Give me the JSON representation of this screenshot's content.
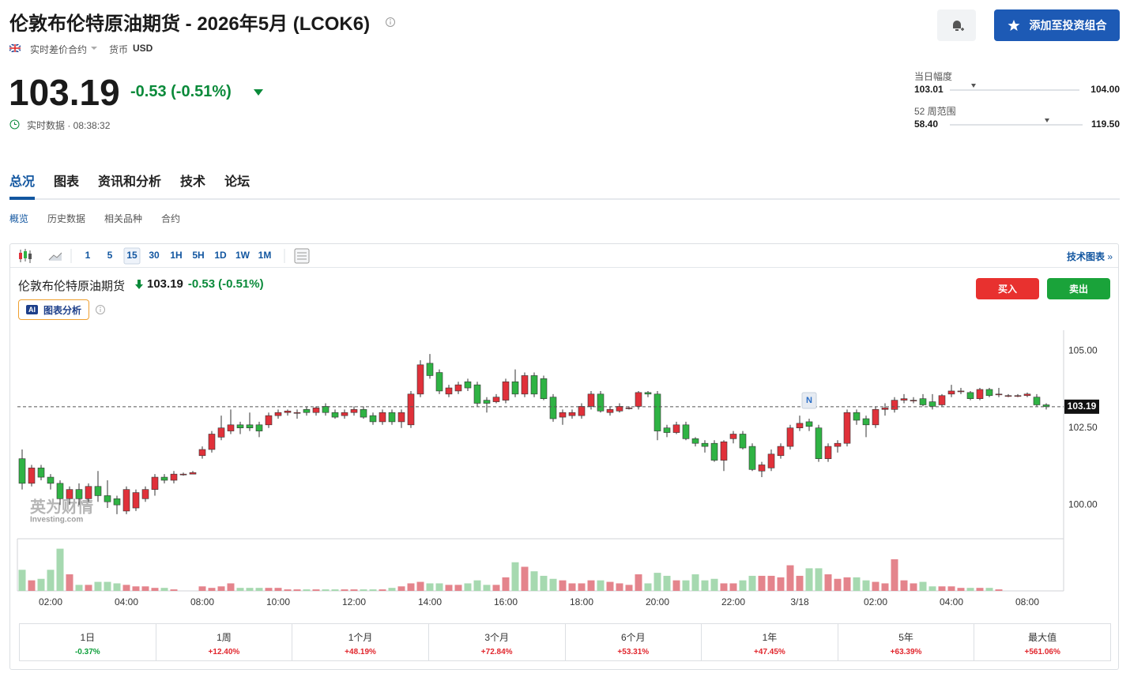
{
  "header": {
    "title": "伦敦布伦特原油期货 - 2026年5月 (LCOK6)",
    "contract_type": "实时差价合约",
    "currency_label": "货币",
    "currency": "USD",
    "add_button": "添加至投资组合"
  },
  "quote": {
    "price": "103.19",
    "change": "-0.53 (-0.51%)",
    "status": "实时数据 · 08:38:32"
  },
  "ranges": [
    {
      "label": "当日幅度",
      "low": "103.01",
      "high": "104.00"
    },
    {
      "label": "52 周范围",
      "low": "58.40",
      "high": "119.50"
    }
  ],
  "tabs": [
    "总况",
    "图表",
    "资讯和分析",
    "技术",
    "论坛"
  ],
  "subtabs": [
    "概览",
    "历史数据",
    "相关品种",
    "合约"
  ],
  "toolbar": {
    "intervals": [
      "1",
      "5",
      "15",
      "30",
      "1H",
      "5H",
      "1D",
      "1W",
      "1M"
    ],
    "tech_chart_link": "技术图表"
  },
  "chart_header": {
    "name": "伦敦布伦特原油期货",
    "price": "103.19",
    "change": "-0.53",
    "change_pct": "(-0.51%)",
    "ai_badge": "AI",
    "ai_button": "图表分析",
    "buy": "买入",
    "sell": "卖出"
  },
  "watermark": {
    "brand": "英为财情",
    "site": "Investing.com"
  },
  "chart_data": {
    "type": "candlestick",
    "categories": [
      null,
      null,
      null,
      "02:00",
      null,
      null,
      null,
      null,
      null,
      null,
      null,
      "04:00",
      null,
      null,
      null,
      null,
      null,
      null,
      null,
      "08:00",
      null,
      null,
      null,
      null,
      null,
      null,
      null,
      "10:00",
      null,
      null,
      null,
      null,
      null,
      null,
      null,
      "12:00",
      null,
      null,
      null,
      null,
      null,
      null,
      null,
      "14:00",
      null,
      null,
      null,
      null,
      null,
      null,
      null,
      "16:00",
      null,
      null,
      null,
      null,
      null,
      null,
      null,
      "18:00",
      null,
      null,
      null,
      null,
      null,
      null,
      null,
      "20:00",
      null,
      null,
      null,
      null,
      null,
      null,
      null,
      "22:00",
      null,
      null,
      null,
      null,
      null,
      null,
      "3/18",
      null,
      null,
      null,
      null,
      null,
      null,
      null,
      "02:00",
      null,
      null,
      null,
      null,
      null,
      null,
      null,
      "04:00",
      null,
      null,
      null,
      null,
      null,
      null,
      null,
      "08:00",
      null,
      null
    ],
    "open": [
      101.5,
      100.7,
      101.2,
      100.9,
      100.7,
      100.2,
      100.5,
      100.2,
      100.6,
      100.3,
      100.2,
      99.8,
      99.9,
      100.2,
      100.5,
      100.9,
      100.8,
      101.0,
      101.0,
      101.6,
      101.8,
      102.2,
      102.4,
      102.6,
      102.6,
      102.6,
      102.6,
      102.9,
      103.0,
      103.0,
      103.1,
      103.0,
      103.2,
      103.0,
      102.9,
      103.0,
      103.1,
      102.9,
      102.7,
      103.0,
      102.7,
      102.6,
      103.6,
      104.6,
      104.3,
      103.6,
      103.7,
      104.0,
      103.9,
      103.4,
      103.35,
      103.4,
      104.0,
      103.6,
      104.2,
      104.1,
      103.5,
      102.85,
      102.9,
      102.9,
      103.2,
      103.6,
      103.0,
      103.05,
      103.15,
      103.2,
      103.65,
      103.6,
      102.5,
      102.35,
      102.6,
      102.15,
      102.0,
      102.0,
      101.45,
      102.15,
      102.3,
      101.9,
      101.1,
      101.2,
      101.6,
      101.9,
      102.5,
      102.7,
      102.5,
      101.5,
      101.9,
      102.0,
      103.0,
      102.8,
      102.6,
      103.1,
      103.1,
      103.4,
      103.4,
      103.45,
      103.35,
      103.25,
      103.6,
      103.7,
      103.65,
      103.45,
      103.75,
      103.6,
      103.55,
      103.55,
      103.55,
      103.5,
      103.25
    ],
    "high": [
      101.8,
      101.3,
      101.3,
      101.0,
      100.8,
      100.6,
      100.7,
      100.7,
      101.1,
      100.8,
      100.3,
      100.6,
      100.5,
      100.6,
      101.0,
      101.0,
      101.1,
      101.05,
      101.1,
      101.9,
      102.4,
      102.9,
      103.1,
      102.7,
      103.0,
      102.7,
      103.0,
      103.1,
      103.1,
      103.1,
      103.2,
      103.2,
      103.3,
      103.1,
      103.1,
      103.2,
      103.2,
      103.0,
      103.1,
      103.1,
      103.1,
      103.7,
      104.7,
      104.9,
      104.4,
      103.9,
      104.0,
      104.1,
      104.0,
      103.5,
      103.6,
      104.1,
      104.4,
      104.3,
      104.3,
      104.2,
      103.6,
      103.1,
      103.1,
      103.3,
      103.7,
      103.7,
      103.2,
      103.3,
      103.2,
      103.7,
      103.7,
      103.7,
      102.6,
      102.7,
      102.7,
      102.2,
      102.1,
      102.1,
      102.1,
      102.4,
      102.4,
      102.0,
      101.4,
      101.8,
      102.0,
      102.6,
      102.9,
      102.8,
      102.6,
      102.0,
      102.1,
      103.1,
      103.1,
      102.9,
      103.2,
      103.3,
      103.5,
      103.6,
      103.5,
      103.6,
      103.6,
      103.6,
      103.9,
      103.8,
      103.7,
      103.8,
      103.8,
      103.8,
      103.6,
      103.6,
      103.65,
      103.6,
      103.3
    ],
    "low": [
      100.5,
      100.6,
      100.8,
      100.5,
      100.0,
      100.0,
      100.0,
      100.1,
      100.1,
      99.9,
      99.7,
      99.7,
      99.8,
      100.1,
      100.3,
      100.7,
      100.7,
      100.95,
      101.0,
      101.5,
      101.7,
      102.1,
      102.3,
      102.3,
      102.4,
      102.2,
      102.5,
      102.8,
      102.9,
      102.8,
      102.9,
      102.9,
      102.9,
      102.8,
      102.8,
      102.9,
      102.8,
      102.6,
      102.6,
      102.6,
      102.5,
      102.5,
      103.5,
      104.1,
      103.6,
      103.5,
      103.6,
      103.7,
      103.2,
      103.0,
      103.3,
      103.3,
      103.5,
      103.5,
      103.5,
      103.4,
      102.7,
      102.6,
      102.8,
      102.8,
      103.1,
      103.0,
      102.9,
      103.0,
      103.1,
      103.1,
      103.5,
      102.1,
      102.2,
      102.3,
      102.1,
      101.9,
      101.7,
      101.4,
      101.1,
      102.0,
      101.8,
      101.1,
      100.9,
      101.1,
      101.5,
      101.8,
      102.4,
      102.4,
      101.4,
      101.4,
      101.7,
      101.9,
      102.6,
      102.2,
      102.5,
      102.9,
      103.0,
      103.3,
      103.3,
      103.2,
      103.1,
      103.2,
      103.5,
      103.6,
      103.4,
      103.4,
      103.5,
      103.5,
      103.5,
      103.5,
      103.5,
      103.2,
      103.1
    ],
    "close": [
      100.7,
      101.2,
      100.9,
      100.7,
      100.2,
      100.5,
      100.2,
      100.6,
      100.3,
      100.1,
      100.0,
      100.5,
      100.4,
      100.5,
      100.9,
      100.8,
      101.0,
      101.0,
      101.05,
      101.8,
      102.3,
      102.5,
      102.6,
      102.5,
      102.5,
      102.4,
      102.9,
      103.0,
      103.05,
      103.0,
      103.0,
      103.15,
      103.0,
      102.85,
      103.0,
      103.1,
      102.85,
      102.7,
      103.0,
      102.7,
      103.0,
      103.6,
      104.55,
      104.2,
      103.7,
      103.8,
      103.9,
      103.8,
      103.3,
      103.3,
      103.5,
      104.0,
      103.6,
      104.2,
      103.6,
      103.45,
      102.8,
      103.0,
      103.0,
      103.2,
      103.6,
      103.05,
      103.1,
      103.2,
      103.15,
      103.65,
      103.6,
      102.4,
      102.35,
      102.6,
      102.15,
      102.0,
      101.9,
      101.45,
      102.05,
      102.3,
      101.85,
      101.15,
      101.3,
      101.65,
      101.9,
      102.5,
      102.65,
      102.55,
      101.5,
      101.9,
      102.0,
      103.0,
      102.75,
      102.6,
      103.1,
      103.15,
      103.4,
      103.45,
      103.4,
      103.25,
      103.2,
      103.55,
      103.7,
      103.7,
      103.45,
      103.75,
      103.55,
      103.6,
      103.55,
      103.55,
      103.6,
      103.25,
      103.19
    ],
    "volume": [
      28,
      14,
      16,
      28,
      56,
      22,
      8,
      8,
      12,
      12,
      10,
      8,
      6,
      6,
      4,
      4,
      2,
      0,
      0,
      6,
      4,
      6,
      10,
      4,
      4,
      4,
      4,
      4,
      2,
      2,
      2,
      2,
      2,
      2,
      2,
      2,
      2,
      2,
      2,
      4,
      6,
      10,
      12,
      10,
      10,
      8,
      8,
      10,
      14,
      8,
      8,
      18,
      38,
      32,
      26,
      20,
      16,
      14,
      10,
      10,
      14,
      14,
      12,
      10,
      8,
      22,
      10,
      24,
      20,
      14,
      14,
      22,
      14,
      16,
      10,
      10,
      14,
      20,
      20,
      20,
      18,
      34,
      20,
      30,
      30,
      22,
      16,
      18,
      18,
      14,
      12,
      10,
      42,
      14,
      10,
      12,
      6,
      6,
      6,
      4,
      4,
      4,
      4,
      2,
      0,
      0,
      0,
      0,
      0
    ],
    "ylim": [
      98.9,
      105.7
    ],
    "yticks": [
      {
        "value": 100,
        "label": "100.00"
      },
      {
        "value": 102.5,
        "label": "102.50"
      },
      {
        "value": 105,
        "label": "105.00"
      }
    ],
    "vlim": [
      0,
      65
    ],
    "last_price": 103.19,
    "news_marker": "N",
    "grid": false,
    "up_color": "#e0313a",
    "down_color": "#2fb344",
    "volume_up_color": "#e4848c",
    "volume_down_color": "#a6d9b0"
  },
  "performance": [
    {
      "period": "1日",
      "change": "-0.37%"
    },
    {
      "period": "1周",
      "change": "+12.40%"
    },
    {
      "period": "1个月",
      "change": "+48.19%"
    },
    {
      "period": "3个月",
      "change": "+72.84%"
    },
    {
      "period": "6个月",
      "change": "+53.31%"
    },
    {
      "period": "1年",
      "change": "+47.45%"
    },
    {
      "period": "5年",
      "change": "+63.39%"
    },
    {
      "period": "最大值",
      "change": "+561.06%"
    }
  ]
}
